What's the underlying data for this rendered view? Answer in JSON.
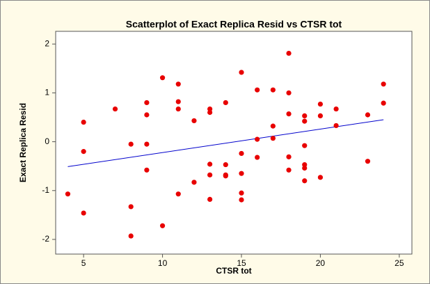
{
  "chart_data": {
    "type": "scatter",
    "title": "Scatterplot of Exact Replica Resid vs CTSR tot",
    "x_label": "CTSR tot",
    "y_label": "Exact Replica Resid",
    "x": [
      4,
      5,
      5,
      5,
      7,
      8,
      8,
      8,
      9,
      9,
      9,
      9,
      10,
      10,
      11,
      11,
      11,
      11,
      12,
      12,
      13,
      13,
      13,
      13,
      13,
      14,
      14,
      14,
      14,
      15,
      15,
      15,
      15,
      15,
      16,
      16,
      16,
      17,
      17,
      17,
      18,
      18,
      18,
      18,
      18,
      19,
      19,
      19,
      19,
      19,
      19,
      20,
      20,
      20,
      21,
      21,
      23,
      23,
      24,
      24
    ],
    "values": [
      -1.07,
      0.4,
      -0.2,
      -1.46,
      0.67,
      -0.05,
      -1.33,
      -1.93,
      0.8,
      0.55,
      -0.05,
      -0.58,
      1.31,
      -1.72,
      1.18,
      0.82,
      0.67,
      -1.07,
      0.43,
      -0.83,
      0.67,
      0.6,
      -0.46,
      -0.68,
      -1.18,
      0.8,
      -0.47,
      -0.68,
      -0.7,
      1.42,
      -0.24,
      -0.65,
      -1.05,
      -1.19,
      1.06,
      0.05,
      -0.32,
      1.06,
      0.32,
      0.07,
      1.81,
      1.0,
      0.57,
      -0.31,
      -0.58,
      0.53,
      0.42,
      -0.08,
      -0.47,
      -0.54,
      -0.8,
      0.77,
      0.53,
      -0.73,
      0.67,
      0.33,
      0.55,
      -0.4,
      1.18,
      0.79
    ],
    "color": "#e80000",
    "fit_line": {
      "x": [
        4,
        24
      ],
      "values": [
        -0.51,
        0.45
      ],
      "color": "#0000cc"
    },
    "xlim": [
      3.23,
      25.8
    ],
    "ylim": [
      -2.3,
      2.26
    ],
    "xticks": [
      5,
      10,
      15,
      20,
      25
    ],
    "yticks": [
      -2,
      -1,
      0,
      1,
      2
    ]
  }
}
